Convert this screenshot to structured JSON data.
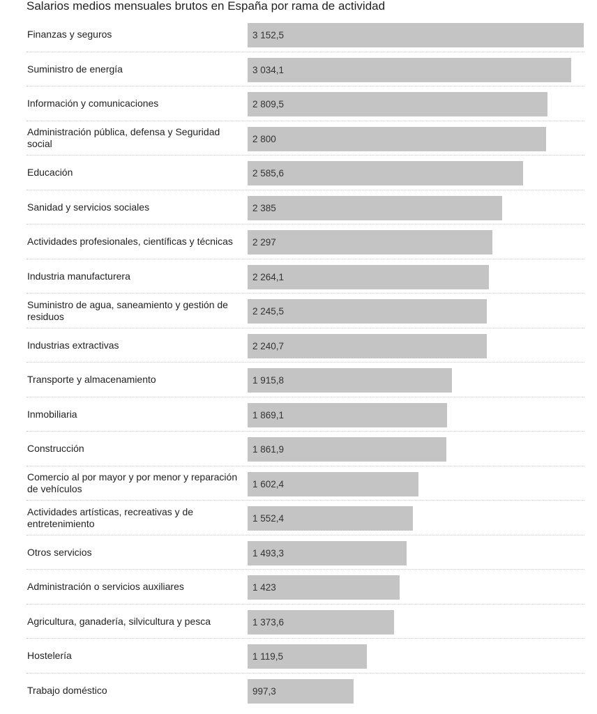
{
  "chart_data": {
    "type": "bar",
    "orientation": "horizontal",
    "title": "Salarios medios mensuales brutos en España por rama de actividad",
    "categories": [
      "Finanzas y seguros",
      "Suministro de energía",
      "Información y comunicaciones",
      "Administración pública, defensa y Seguridad social",
      "Educación",
      "Sanidad y servicios sociales",
      "Actividades profesionales, científicas y técnicas",
      "Industria manufacturera",
      "Suministro de agua, saneamiento y gestión de residuos",
      "Industrias extractivas",
      "Transporte y almacenamiento",
      "Inmobiliaria",
      "Construcción",
      "Comercio al por mayor y por menor y reparación de vehículos",
      "Actividades artísticas, recreativas y de entretenimiento",
      "Otros servicios",
      "Administración o servicios auxiliares",
      "Agricultura, ganadería, silvicultura y pesca",
      "Hostelería",
      "Trabajo doméstico"
    ],
    "values": [
      3152.5,
      3034.1,
      2809.5,
      2800,
      2585.6,
      2385,
      2297,
      2264.1,
      2245.5,
      2240.7,
      1915.8,
      1869.1,
      1861.9,
      1602.4,
      1552.4,
      1493.3,
      1423,
      1373.6,
      1119.5,
      997.3
    ],
    "value_labels": [
      "3 152,5",
      "3 034,1",
      "2 809,5",
      "2 800",
      "2 585,6",
      "2 385",
      "2 297",
      "2 264,1",
      "2 245,5",
      "2 240,7",
      "1 915,8",
      "1 869,1",
      "1 861,9",
      "1 602,4",
      "1 552,4",
      "1 493,3",
      "1 423",
      "1 373,6",
      "1 119,5",
      "997,3"
    ],
    "xlim": [
      0,
      3152.5
    ],
    "grid": false,
    "legend": "none",
    "bar_color": "#c4c4c4"
  }
}
